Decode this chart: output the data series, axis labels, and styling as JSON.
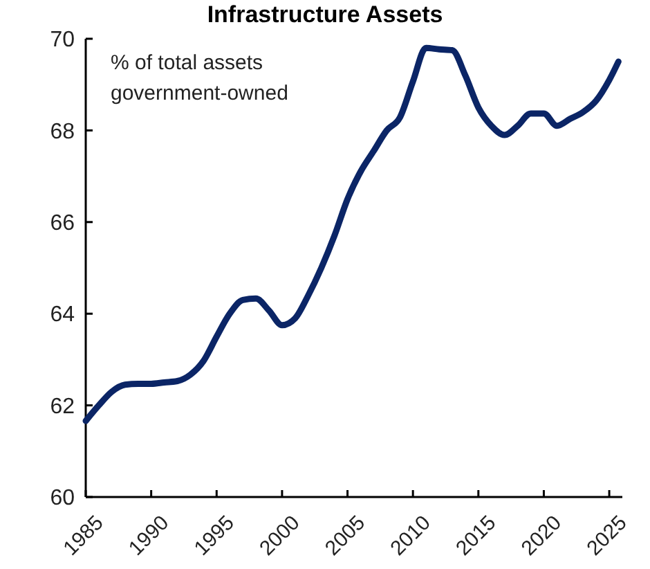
{
  "chart_data": {
    "type": "line",
    "title": "Infrastructure Assets",
    "annotations": [
      "% of total assets\ngovernment-owned"
    ],
    "x": [
      1985,
      1986,
      1987,
      1988,
      1989,
      1990,
      1991,
      1992,
      1993,
      1994,
      1995,
      1996,
      1997,
      1998,
      1999,
      2000,
      2001,
      2002,
      2003,
      2004,
      2005,
      2006,
      2007,
      2008,
      2009,
      2010,
      2011,
      2012,
      2013,
      2014,
      2015,
      2016,
      2017,
      2018,
      2019,
      2020,
      2021,
      2022,
      2023,
      2024,
      2025,
      2025.7
    ],
    "series": [
      {
        "color": "#0b2566",
        "values": [
          61.66,
          62.0,
          62.3,
          62.45,
          62.47,
          62.47,
          62.5,
          62.53,
          62.67,
          62.97,
          63.5,
          64.0,
          64.3,
          64.33,
          64.07,
          63.75,
          63.9,
          64.4,
          65.0,
          65.7,
          66.5,
          67.1,
          67.55,
          68.0,
          68.28,
          69.07,
          69.8,
          69.77,
          69.75,
          69.2,
          68.5,
          68.1,
          67.9,
          68.1,
          68.37,
          68.37,
          68.1,
          68.25,
          68.4,
          68.65,
          69.1,
          69.5
        ]
      }
    ],
    "xlim": [
      1985,
      2026
    ],
    "xticks": [
      1985,
      1990,
      1995,
      2000,
      2005,
      2010,
      2015,
      2020,
      2025
    ],
    "ylim": [
      60,
      70
    ],
    "yticks": [
      60,
      62,
      64,
      66,
      68,
      70
    ],
    "grid": false,
    "marker": "none",
    "line_style": "solid"
  }
}
